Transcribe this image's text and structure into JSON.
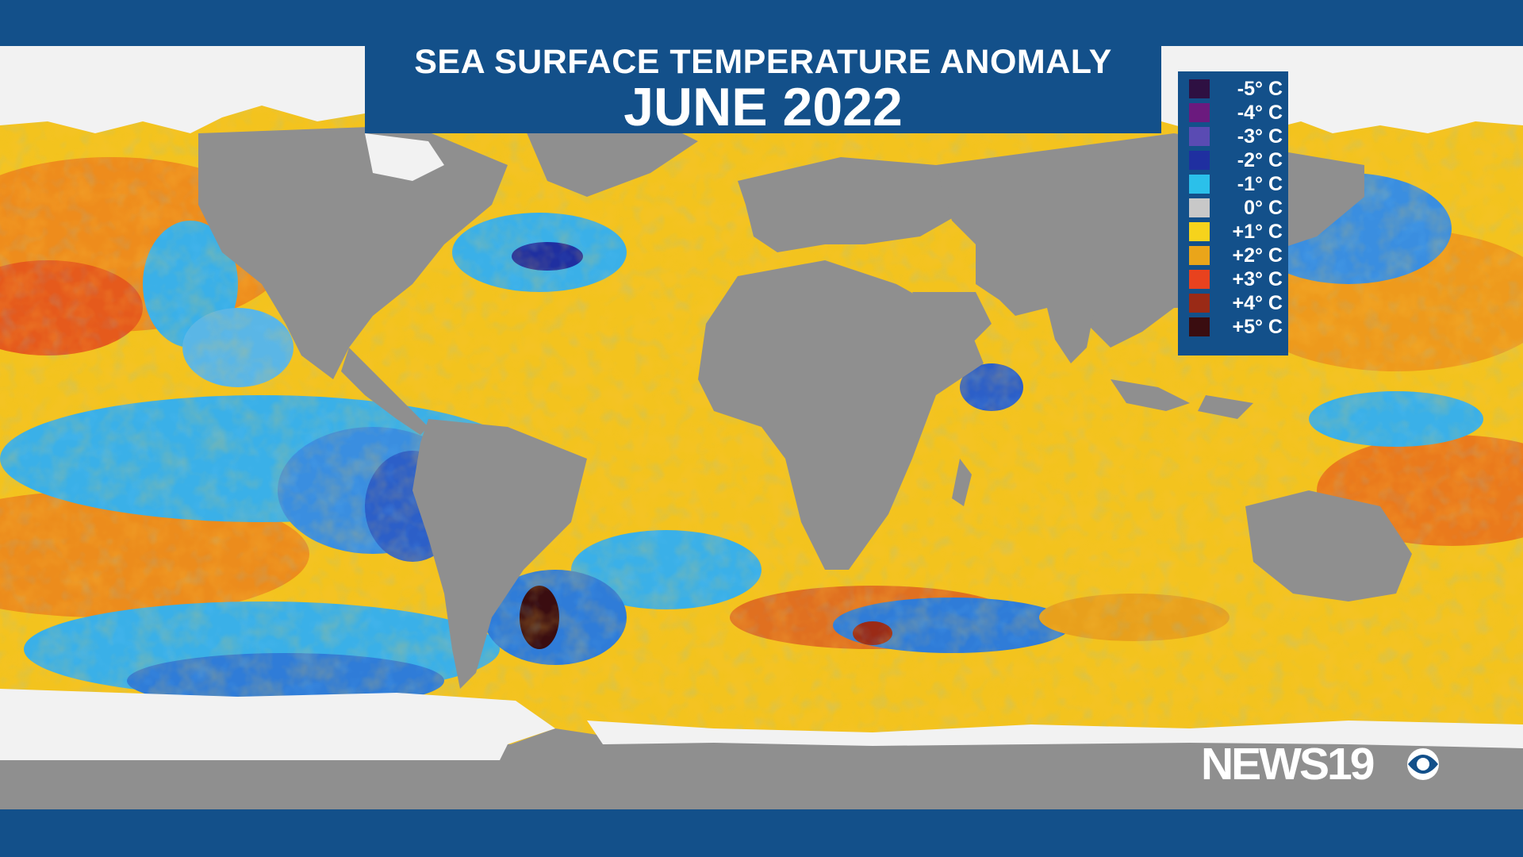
{
  "title": {
    "line1": "SEA SURFACE TEMPERATURE ANOMALY",
    "line2": "JUNE 2022"
  },
  "legend": [
    {
      "label": "-5° C",
      "color": "#2e1042"
    },
    {
      "label": "-4° C",
      "color": "#6b1a7e"
    },
    {
      "label": "-3° C",
      "color": "#5a4bb3"
    },
    {
      "label": "-2° C",
      "color": "#1f2fa0"
    },
    {
      "label": "-1° C",
      "color": "#2bc0ea"
    },
    {
      "label": "0° C",
      "color": "#c8c8c8"
    },
    {
      "label": "+1° C",
      "color": "#f6d31c"
    },
    {
      "label": "+2° C",
      "color": "#eaa51a"
    },
    {
      "label": "+3° C",
      "color": "#e8421e"
    },
    {
      "label": "+4° C",
      "color": "#9a2a16"
    },
    {
      "label": "+5° C",
      "color": "#3a0d10"
    }
  ],
  "logo": {
    "text": "NEWS19",
    "icon": "cbs-eye-icon"
  },
  "colors": {
    "band": "#13508a",
    "land": "#8f8f8f",
    "ice": "#f2f2f2"
  }
}
